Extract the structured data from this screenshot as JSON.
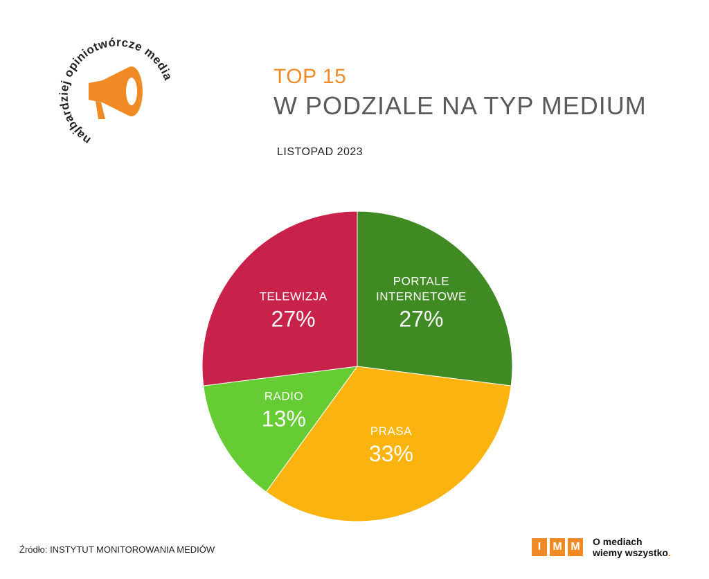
{
  "logo": {
    "text": "najbardziej opiniotwórcze media",
    "icon": "megaphone-icon",
    "color": "#f08a24"
  },
  "header": {
    "top": "TOP 15",
    "main": "W PODZIALE NA TYP MEDIUM",
    "period": "LISTOPAD 2023"
  },
  "chart_data": {
    "type": "pie",
    "slices": [
      {
        "label": [
          "PORTALE",
          "INTERNETOWE"
        ],
        "value": 27,
        "display": "27%",
        "color": "#3f8a23"
      },
      {
        "label": [
          "PRASA"
        ],
        "value": 33,
        "display": "33%",
        "color": "#fbb40f"
      },
      {
        "label": [
          "RADIO"
        ],
        "value": 13,
        "display": "13%",
        "color": "#66cc33"
      },
      {
        "label": [
          "TELEWIZJA"
        ],
        "value": 27,
        "display": "27%",
        "color": "#c8224b"
      }
    ],
    "start": "12 o'clock",
    "direction": "clockwise"
  },
  "footer": {
    "source": "Źródło: INSTYTUT MONITOROWANIA MEDIÓW",
    "brand_letters": [
      "I",
      "M",
      "M"
    ],
    "brand_tagline_1": "O mediach",
    "brand_tagline_2": "wiemy wszystko",
    "brand_tagline_dot": "."
  }
}
